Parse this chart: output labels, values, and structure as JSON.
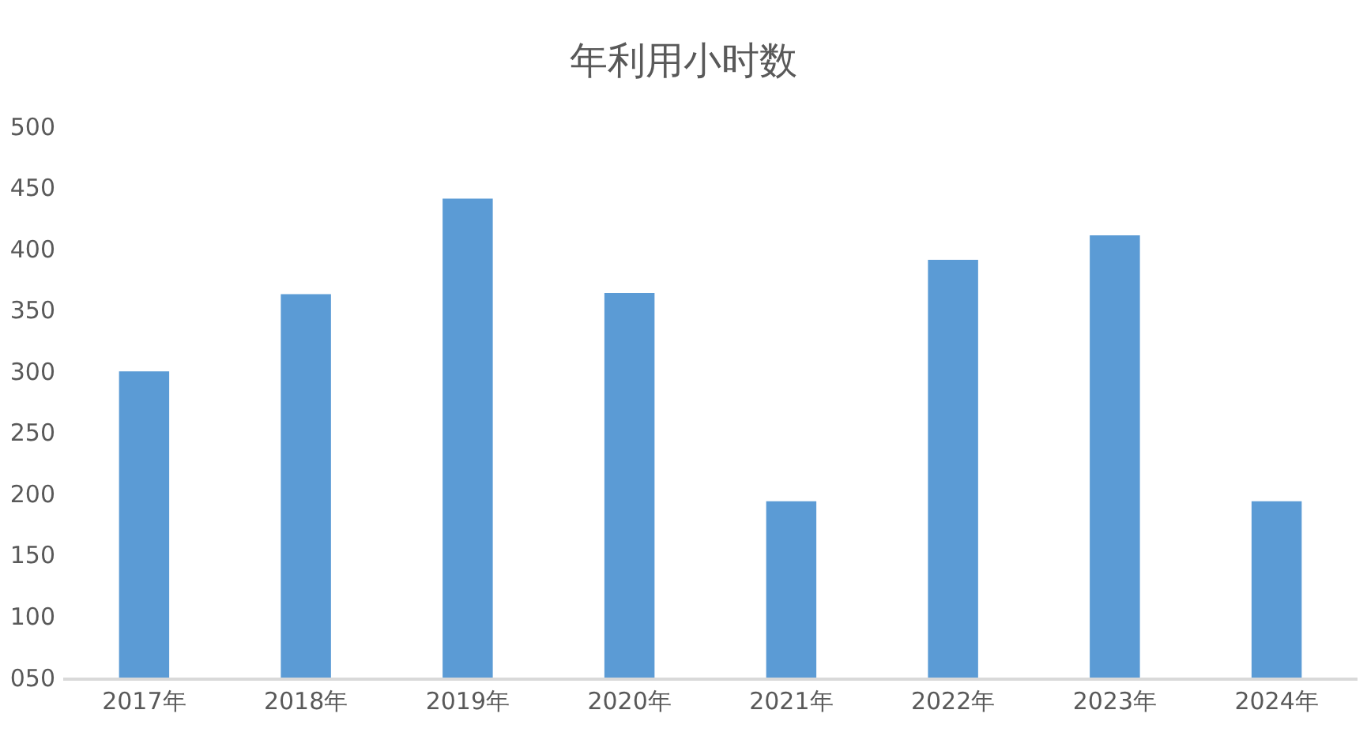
{
  "chart_data": {
    "type": "bar",
    "title": "年利用小时数",
    "categories": [
      "2017年",
      "2018年",
      "2019年",
      "2020年",
      "2021年",
      "2022年",
      "2023年",
      "2024年"
    ],
    "values": [
      300,
      363,
      441,
      364,
      194,
      391,
      411,
      194
    ],
    "color": "#5b9bd5",
    "ylim": [
      50,
      500
    ],
    "yticks": [
      {
        "value": 50,
        "label": "050"
      },
      100,
      150,
      200,
      250,
      300,
      350,
      400,
      450,
      500
    ],
    "grid": false,
    "legend": false
  }
}
